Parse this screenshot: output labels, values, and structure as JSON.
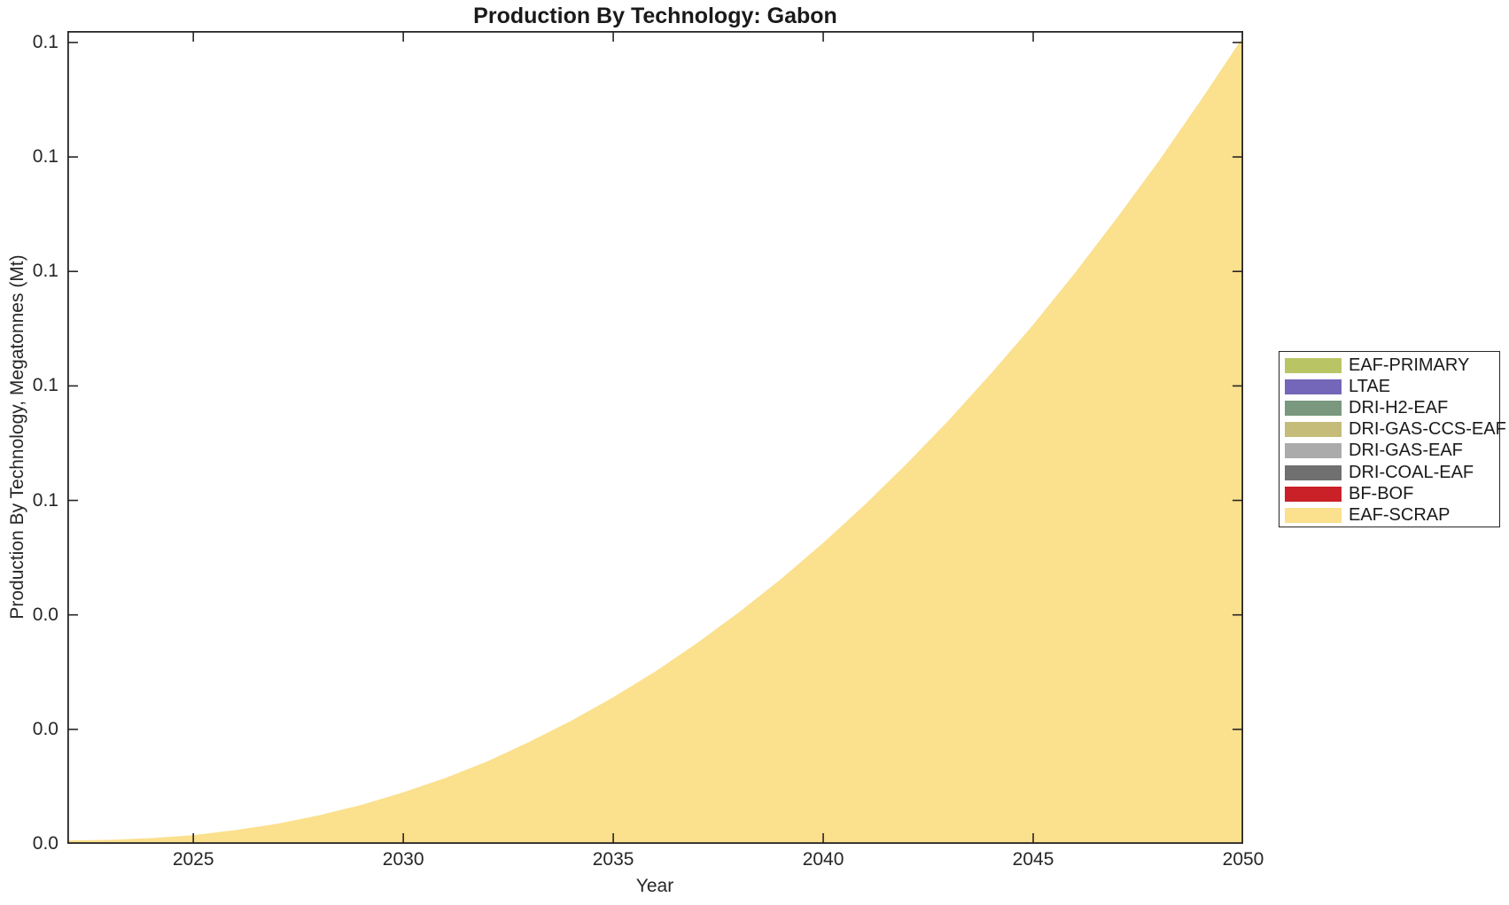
{
  "style": {
    "background": "#ffffff",
    "axis_color": "#262626",
    "text_color": "#262626",
    "title_color": "#1a1a1a"
  },
  "chart_data": {
    "type": "area",
    "title": "Production By Technology: Gabon",
    "xlabel": "Year",
    "ylabel": "Production By Technology, Megatonnes (Mt)",
    "xlim": [
      2022,
      2050
    ],
    "ylim": [
      0,
      0.142
    ],
    "grid": false,
    "legend_position": "right-outside",
    "xticks": [
      {
        "value": 2025,
        "label": "2025"
      },
      {
        "value": 2030,
        "label": "2030"
      },
      {
        "value": 2035,
        "label": "2035"
      },
      {
        "value": 2040,
        "label": "2040"
      },
      {
        "value": 2045,
        "label": "2045"
      },
      {
        "value": 2050,
        "label": "2050"
      }
    ],
    "yticks": [
      {
        "value": 0.0,
        "label": "0.0"
      },
      {
        "value": 0.02,
        "label": "0.0"
      },
      {
        "value": 0.04,
        "label": "0.0"
      },
      {
        "value": 0.06,
        "label": "0.1"
      },
      {
        "value": 0.08,
        "label": "0.1"
      },
      {
        "value": 0.1,
        "label": "0.1"
      },
      {
        "value": 0.12,
        "label": "0.1"
      },
      {
        "value": 0.14,
        "label": "0.1"
      }
    ],
    "x": [
      2022,
      2023,
      2024,
      2025,
      2026,
      2027,
      2028,
      2029,
      2030,
      2031,
      2032,
      2033,
      2034,
      2035,
      2036,
      2037,
      2038,
      2039,
      2040,
      2041,
      2042,
      2043,
      2044,
      2045,
      2046,
      2047,
      2048,
      2049,
      2050
    ],
    "series": [
      {
        "name": "EAF-PRIMARY",
        "color": "#B9C564",
        "values": [
          0,
          0,
          0,
          0,
          0,
          0,
          0,
          0,
          0,
          0,
          0,
          0,
          0,
          0,
          0,
          0,
          0,
          0,
          0,
          0,
          0,
          0,
          0,
          0,
          0,
          0,
          0,
          0,
          0
        ]
      },
      {
        "name": "LTAE",
        "color": "#7466B8",
        "values": [
          0,
          0,
          0,
          0,
          0,
          0,
          0,
          0,
          0,
          0,
          0,
          0,
          0,
          0,
          0,
          0,
          0,
          0,
          0,
          0,
          0,
          0,
          0,
          0,
          0,
          0,
          0,
          0,
          0
        ]
      },
      {
        "name": "DRI-H2-EAF",
        "color": "#79987E",
        "values": [
          0,
          0,
          0,
          0,
          0,
          0,
          0,
          0,
          0,
          0,
          0,
          0,
          0,
          0,
          0,
          0,
          0,
          0,
          0,
          0,
          0,
          0,
          0,
          0,
          0,
          0,
          0,
          0,
          0
        ]
      },
      {
        "name": "DRI-GAS-CCS-EAF",
        "color": "#C4BC78",
        "values": [
          0,
          0,
          0,
          0,
          0,
          0,
          0,
          0,
          0,
          0,
          0,
          0,
          0,
          0,
          0,
          0,
          0,
          0,
          0,
          0,
          0,
          0,
          0,
          0,
          0,
          0,
          0,
          0,
          0
        ]
      },
      {
        "name": "DRI-GAS-EAF",
        "color": "#ABABAB",
        "values": [
          0,
          0,
          0,
          0,
          0,
          0,
          0,
          0,
          0,
          0,
          0,
          0,
          0,
          0,
          0,
          0,
          0,
          0,
          0,
          0,
          0,
          0,
          0,
          0,
          0,
          0,
          0,
          0,
          0
        ]
      },
      {
        "name": "DRI-COAL-EAF",
        "color": "#707070",
        "values": [
          0,
          0,
          0,
          0,
          0,
          0,
          0,
          0,
          0,
          0,
          0,
          0,
          0,
          0,
          0,
          0,
          0,
          0,
          0,
          0,
          0,
          0,
          0,
          0,
          0,
          0,
          0,
          0,
          0
        ]
      },
      {
        "name": "BF-BOF",
        "color": "#CA2128",
        "values": [
          0,
          0,
          0,
          0,
          0,
          0,
          0,
          0,
          0,
          0,
          0,
          0,
          0,
          0,
          0,
          0,
          0,
          0,
          0,
          0,
          0,
          0,
          0,
          0,
          0,
          0,
          0,
          0,
          0
        ]
      },
      {
        "name": "EAF-SCRAP",
        "color": "#FBE08D",
        "values": [
          0.0006,
          0.0007,
          0.001,
          0.0015,
          0.0024,
          0.0035,
          0.005,
          0.0068,
          0.009,
          0.0115,
          0.0144,
          0.0178,
          0.0215,
          0.0256,
          0.0301,
          0.0351,
          0.0405,
          0.0463,
          0.0526,
          0.0593,
          0.0665,
          0.0741,
          0.0822,
          0.0907,
          0.0998,
          0.1094,
          0.1194,
          0.13,
          0.141
        ]
      }
    ]
  }
}
